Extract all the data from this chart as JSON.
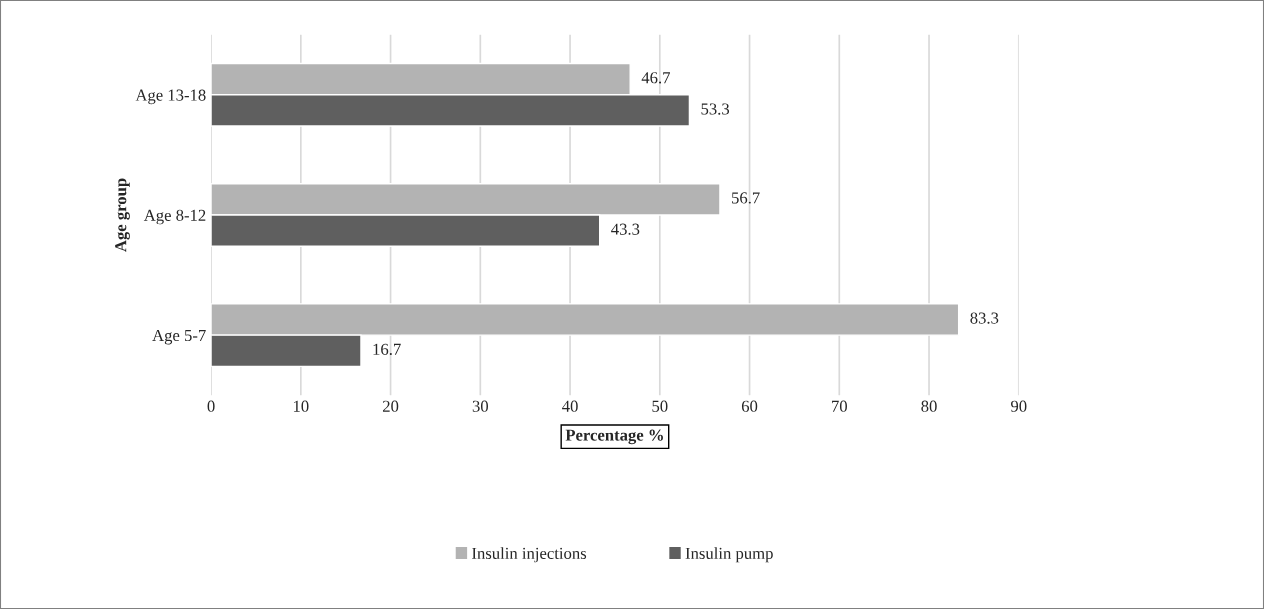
{
  "chart_data": {
    "type": "bar",
    "orientation": "horizontal",
    "xlabel": "Percentage %",
    "ylabel": "Age group",
    "categories": [
      "Age 13-18",
      "Age 8-12",
      "Age 5-7"
    ],
    "series": [
      {
        "name": "Insulin injections",
        "color": "#b3b3b3",
        "values": [
          46.7,
          56.7,
          83.3
        ]
      },
      {
        "name": "Insulin pump",
        "color": "#5f5f5f",
        "values": [
          53.3,
          43.3,
          16.7
        ]
      }
    ],
    "xlim": [
      0,
      90
    ],
    "xticks": [
      0,
      10,
      20,
      30,
      40,
      50,
      60,
      70,
      80,
      90
    ],
    "grid": "x",
    "legend": "bottom",
    "data_labels": true
  }
}
